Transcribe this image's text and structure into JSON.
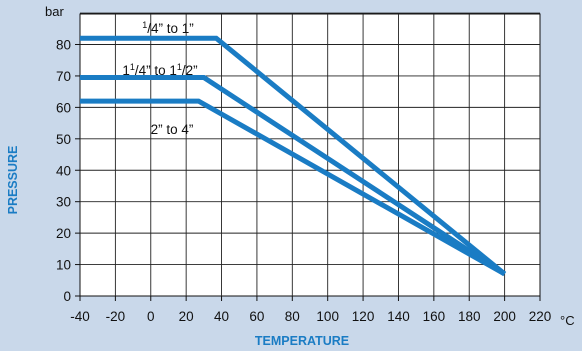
{
  "chart_data": {
    "type": "line",
    "xlabel": "TEMPERATURE",
    "ylabel": "PRESSURE",
    "x_unit": "°C",
    "y_unit": "bar",
    "xlim": [
      -40,
      220
    ],
    "ylim": [
      0,
      90
    ],
    "xticks": [
      -40,
      -20,
      0,
      20,
      40,
      60,
      80,
      100,
      120,
      140,
      160,
      180,
      200,
      220
    ],
    "yticks": [
      0,
      10,
      20,
      30,
      40,
      50,
      60,
      70,
      80
    ],
    "grid": true,
    "colors": {
      "line": "#1a7cc4",
      "axis_title": "#1a7cc4",
      "background": "#c9d8ea",
      "plot": "#ffffff"
    },
    "series": [
      {
        "name_parts": [
          [
            "1",
            "/4",
            "” to 1”"
          ]
        ],
        "x": [
          -40,
          37,
          200
        ],
        "y": [
          82,
          82,
          7
        ]
      },
      {
        "name_parts": [
          [
            "1",
            "1",
            "/4",
            "” to "
          ],
          [
            "1",
            "1",
            "/2",
            "”"
          ]
        ],
        "x": [
          -40,
          30,
          200
        ],
        "y": [
          69.5,
          69.5,
          7
        ]
      },
      {
        "name_parts": [
          [
            "2” to 4”"
          ]
        ],
        "x": [
          -40,
          27,
          200
        ],
        "y": [
          62,
          62,
          7
        ]
      }
    ]
  }
}
